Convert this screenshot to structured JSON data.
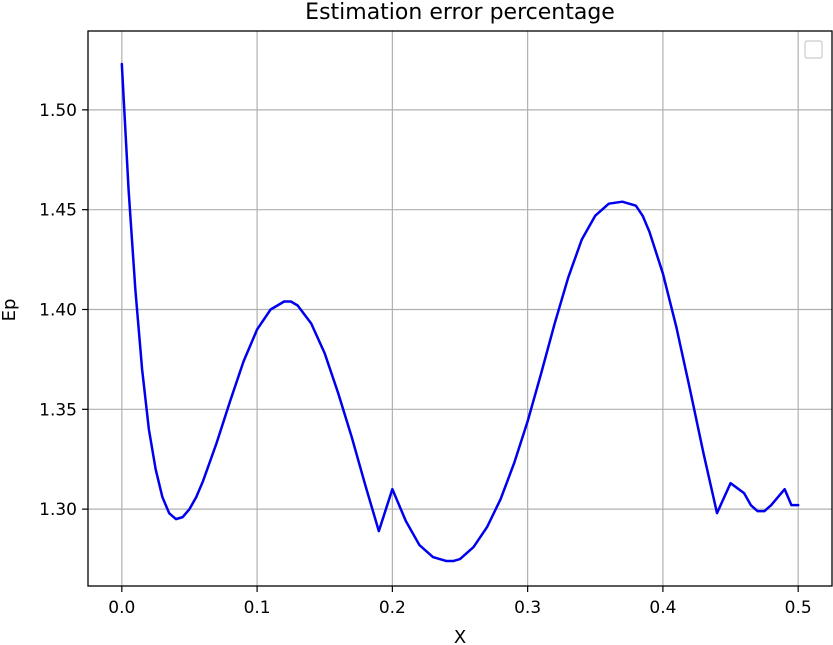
{
  "chart_data": {
    "type": "line",
    "title": "Estimation error percentage",
    "xlabel": "X",
    "ylabel": "Ep",
    "xlim": [
      -0.025,
      0.525
    ],
    "ylim": [
      1.2615,
      1.5395
    ],
    "xticks": [
      0.0,
      0.1,
      0.2,
      0.3,
      0.4,
      0.5
    ],
    "xtick_labels": [
      "0.0",
      "0.1",
      "0.2",
      "0.3",
      "0.4",
      "0.5"
    ],
    "yticks": [
      1.3,
      1.35,
      1.4,
      1.45,
      1.5
    ],
    "ytick_labels": [
      "1.30",
      "1.35",
      "1.40",
      "1.45",
      "1.50"
    ],
    "grid": true,
    "legend": {
      "placement": "top-right",
      "entries": []
    },
    "series": [
      {
        "color": "#0000ee",
        "x": [
          0.0,
          0.005,
          0.01,
          0.015,
          0.02,
          0.025,
          0.03,
          0.035,
          0.04,
          0.045,
          0.05,
          0.055,
          0.06,
          0.07,
          0.08,
          0.09,
          0.1,
          0.11,
          0.12,
          0.125,
          0.13,
          0.14,
          0.15,
          0.16,
          0.17,
          0.18,
          0.19,
          0.2,
          0.21,
          0.22,
          0.23,
          0.24,
          0.245,
          0.25,
          0.26,
          0.27,
          0.28,
          0.29,
          0.3,
          0.31,
          0.32,
          0.33,
          0.34,
          0.35,
          0.36,
          0.37,
          0.38,
          0.385,
          0.39,
          0.4,
          0.41,
          0.42,
          0.43,
          0.44,
          0.45,
          0.46,
          0.465,
          0.47,
          0.475,
          0.48,
          0.485,
          0.49,
          0.495,
          0.5
        ],
        "y": [
          1.523,
          1.46,
          1.41,
          1.37,
          1.34,
          1.32,
          1.306,
          1.298,
          1.295,
          1.296,
          1.3,
          1.306,
          1.314,
          1.333,
          1.354,
          1.374,
          1.39,
          1.4,
          1.404,
          1.404,
          1.402,
          1.393,
          1.378,
          1.358,
          1.336,
          1.312,
          1.289,
          1.31,
          1.294,
          1.282,
          1.276,
          1.274,
          1.274,
          1.275,
          1.281,
          1.291,
          1.305,
          1.323,
          1.344,
          1.368,
          1.393,
          1.416,
          1.435,
          1.447,
          1.453,
          1.454,
          1.452,
          1.447,
          1.439,
          1.418,
          1.391,
          1.36,
          1.328,
          1.298,
          1.313,
          1.308,
          1.302,
          1.299,
          1.299,
          1.302,
          1.306,
          1.31,
          1.302,
          1.302
        ]
      }
    ]
  }
}
